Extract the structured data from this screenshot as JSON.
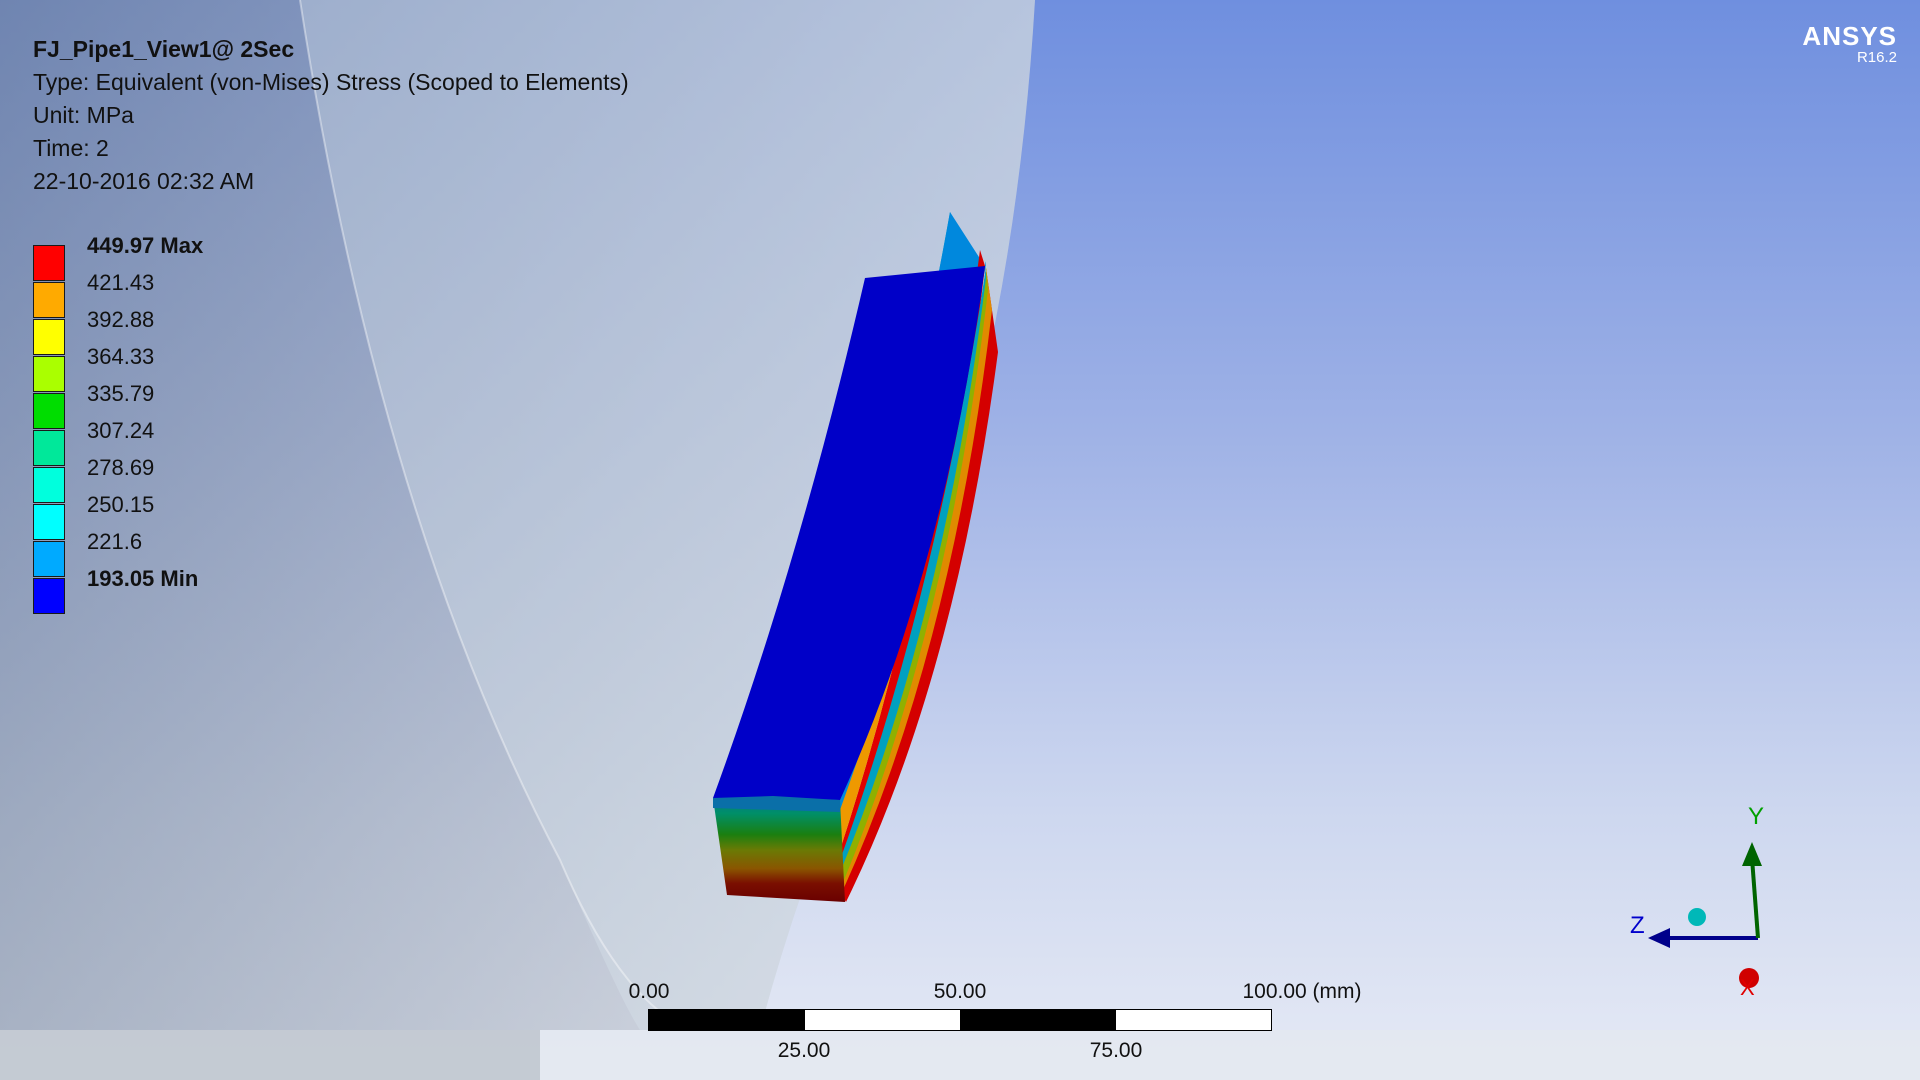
{
  "info": {
    "title": "FJ_Pipe1_View1@ 2Sec",
    "type": "Type: Equivalent (von-Mises) Stress (Scoped to Elements)",
    "unit": "Unit: MPa",
    "time": "Time: 2",
    "date": "22-10-2016 02:32 AM"
  },
  "legend": [
    {
      "label": "449.97 Max",
      "color": "#ff0000",
      "bold": true
    },
    {
      "label": "421.43",
      "color": "#ffaa00",
      "bold": false
    },
    {
      "label": "392.88",
      "color": "#ffff00",
      "bold": false
    },
    {
      "label": "364.33",
      "color": "#aaff00",
      "bold": false
    },
    {
      "label": "335.79",
      "color": "#00dd00",
      "bold": false
    },
    {
      "label": "307.24",
      "color": "#00e89a",
      "bold": false
    },
    {
      "label": "278.69",
      "color": "#00ffdd",
      "bold": false
    },
    {
      "label": "250.15",
      "color": "#00ffff",
      "bold": false
    },
    {
      "label": "221.6",
      "color": "#00aaff",
      "bold": false
    },
    {
      "label": "193.05 Min",
      "color": "#0000ff",
      "bold": true
    }
  ],
  "logo": {
    "name": "ANSYS",
    "version": "R16.2"
  },
  "scale": {
    "top_labels": [
      "0.00",
      "50.00",
      "100.00 (mm)"
    ],
    "bottom_labels": [
      "25.00",
      "75.00"
    ]
  },
  "triad": {
    "y_label": "Y",
    "z_label": "Z",
    "x_label": "X"
  }
}
